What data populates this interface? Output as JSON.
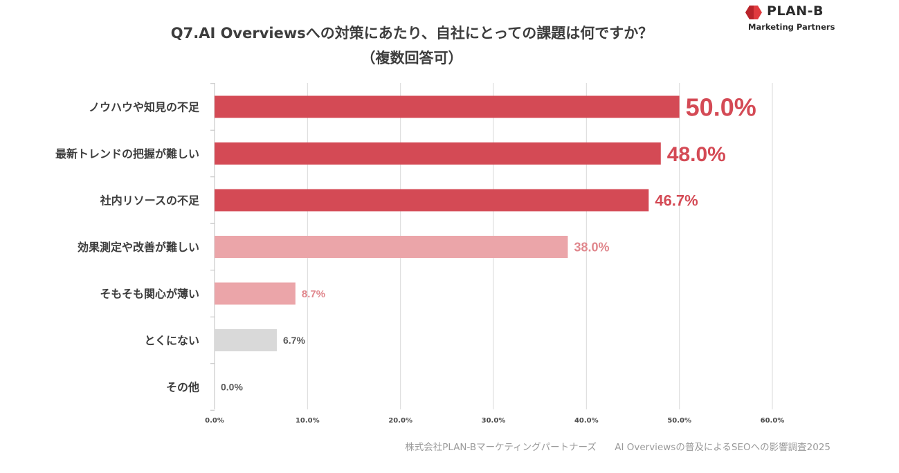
{
  "title_line1": "Q7.AI Overviewsへの対策にあたり、自社にとっての課題は何ですか？",
  "title_line2": "（複数回答可）",
  "logo": {
    "name": "PLAN-B",
    "sub": "Marketing Partners",
    "color": "#e03a3e"
  },
  "footer": {
    "company": "株式会社PLAN-Bマーケティングパートナーズ",
    "survey": "AI Overviewsの普及によるSEOへの影響調査2025"
  },
  "colors": {
    "dark": "#d44a55",
    "light": "#eba5a9",
    "gray": "#d9d9d9",
    "grid": "#d9d9d9"
  },
  "chart_data": {
    "type": "bar",
    "orientation": "horizontal",
    "categories": [
      "ノウハウや知見の不足",
      "最新トレンドの把握が難しい",
      "社内リソースの不足",
      "効果測定や改善が難しい",
      "そもそも関心が薄い",
      "とくにない",
      "その他"
    ],
    "values": [
      50.0,
      48.0,
      46.7,
      38.0,
      8.7,
      6.7,
      0.0
    ],
    "value_labels": [
      "50.0%",
      "48.0%",
      "46.7%",
      "38.0%",
      "8.7%",
      "6.7%",
      "0.0%"
    ],
    "bar_color_groups": [
      "dark",
      "dark",
      "dark",
      "light",
      "light",
      "gray",
      "gray"
    ],
    "xlim": [
      0,
      60
    ],
    "xticks": [
      0,
      10,
      20,
      30,
      40,
      50,
      60
    ],
    "xtick_labels": [
      "0.0%",
      "10.0%",
      "20.0%",
      "30.0%",
      "40.0%",
      "50.0%",
      "60.0%"
    ],
    "grid": true,
    "legend": "none",
    "title": "Q7.AI Overviewsへの対策にあたり、自社にとっての課題は何ですか？ （複数回答可）",
    "xlabel": "",
    "ylabel": ""
  }
}
